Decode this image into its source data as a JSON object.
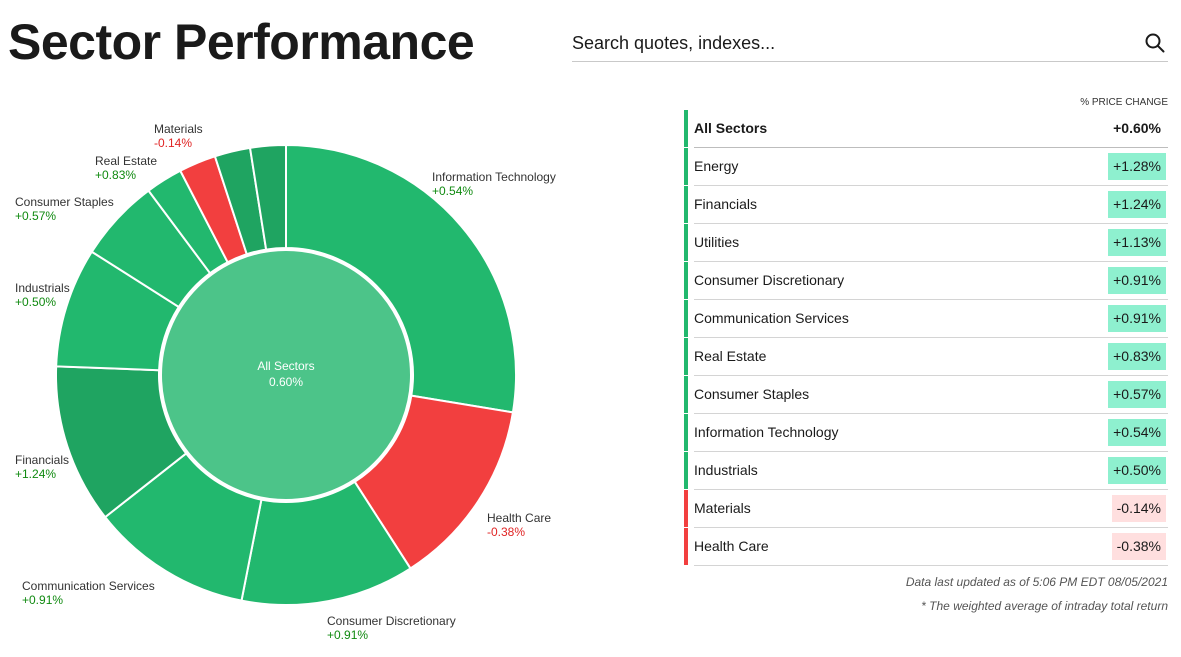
{
  "title": "Sector Performance",
  "search": {
    "placeholder": "Search quotes, indexes..."
  },
  "colors": {
    "positive": "#22b86e",
    "positive_dark": "#1fa461",
    "negative": "#f23f3f",
    "center": "#4cc489",
    "positive_text": "#108a10",
    "negative_text": "#e02424",
    "pos_badge": "#8ef0cf",
    "neg_badge": "#ffdfdf"
  },
  "chart_data": {
    "type": "pie",
    "center": {
      "label": "All Sectors",
      "value": "0.60%"
    },
    "slices": [
      {
        "name": "Information Technology",
        "value": "+0.54%",
        "change": 0.54,
        "weight": 27.6
      },
      {
        "name": "Health Care",
        "value": "-0.38%",
        "change": -0.38,
        "weight": 13.3
      },
      {
        "name": "Consumer Discretionary",
        "value": "+0.91%",
        "change": 0.91,
        "weight": 12.2
      },
      {
        "name": "Communication Services",
        "value": "+0.91%",
        "change": 0.91,
        "weight": 11.3
      },
      {
        "name": "Financials",
        "value": "+1.24%",
        "change": 1.24,
        "weight": 11.2
      },
      {
        "name": "Industrials",
        "value": "+0.50%",
        "change": 0.5,
        "weight": 8.4
      },
      {
        "name": "Consumer Staples",
        "value": "+0.57%",
        "change": 0.57,
        "weight": 5.8
      },
      {
        "name": "Real Estate",
        "value": "+0.83%",
        "change": 0.83,
        "weight": 2.6
      },
      {
        "name": "Materials",
        "value": "-0.14%",
        "change": -0.14,
        "weight": 2.6
      },
      {
        "name": "Utilities",
        "value": "+1.13%",
        "change": 1.13,
        "weight": 2.5
      },
      {
        "name": "Energy",
        "value": "+1.28%",
        "change": 1.28,
        "weight": 2.5
      }
    ]
  },
  "table": {
    "header": "% Price Change",
    "total": {
      "name": "All Sectors",
      "value": "+0.60%"
    },
    "rows": [
      {
        "name": "Energy",
        "value": "+1.28%",
        "change": 1.28
      },
      {
        "name": "Financials",
        "value": "+1.24%",
        "change": 1.24
      },
      {
        "name": "Utilities",
        "value": "+1.13%",
        "change": 1.13
      },
      {
        "name": "Consumer Discretionary",
        "value": "+0.91%",
        "change": 0.91
      },
      {
        "name": "Communication Services",
        "value": "+0.91%",
        "change": 0.91
      },
      {
        "name": "Real Estate",
        "value": "+0.83%",
        "change": 0.83
      },
      {
        "name": "Consumer Staples",
        "value": "+0.57%",
        "change": 0.57
      },
      {
        "name": "Information Technology",
        "value": "+0.54%",
        "change": 0.54
      },
      {
        "name": "Industrials",
        "value": "+0.50%",
        "change": 0.5
      },
      {
        "name": "Materials",
        "value": "-0.14%",
        "change": -0.14
      },
      {
        "name": "Health Care",
        "value": "-0.38%",
        "change": -0.38
      }
    ]
  },
  "footer": {
    "updated": "Data last updated as of 5:06 PM EDT 08/05/2021",
    "note": "* The weighted average of intraday total return"
  }
}
